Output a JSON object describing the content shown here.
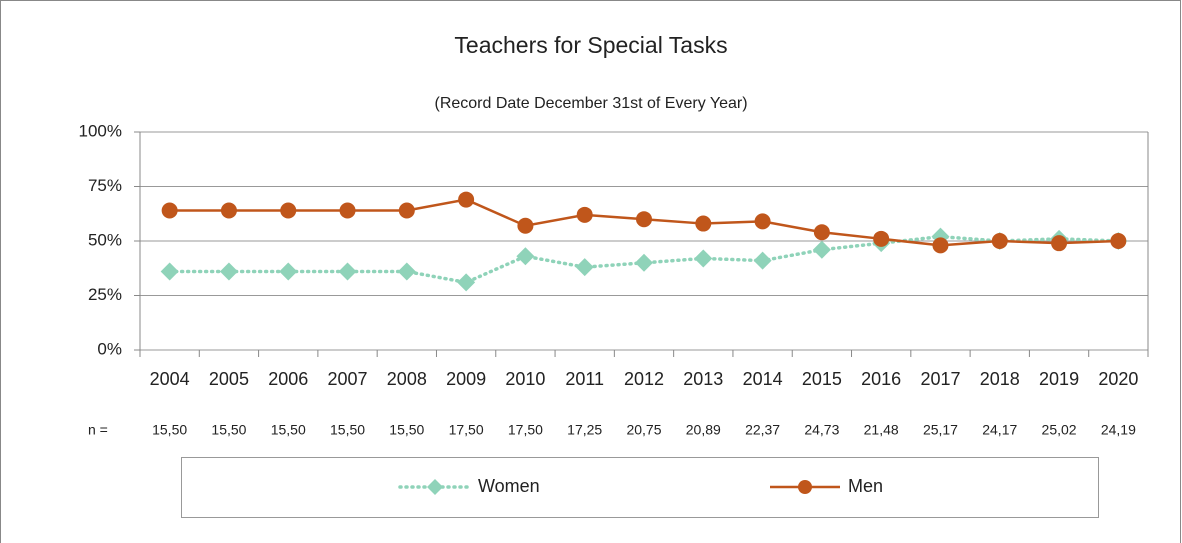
{
  "chart_data": {
    "type": "line",
    "title": "Teachers for Special Tasks",
    "subtitle": "(Record Date December 31st of Every Year)",
    "categories": [
      "2004",
      "2005",
      "2006",
      "2007",
      "2008",
      "2009",
      "2010",
      "2011",
      "2012",
      "2013",
      "2014",
      "2015",
      "2016",
      "2017",
      "2018",
      "2019",
      "2020"
    ],
    "series": [
      {
        "name": "Women",
        "color": "#8fd3b9",
        "values": [
          36,
          36,
          36,
          36,
          36,
          31,
          43,
          38,
          40,
          42,
          41,
          46,
          49,
          52,
          50,
          51,
          50
        ]
      },
      {
        "name": "Men",
        "color": "#c0561b",
        "values": [
          64,
          64,
          64,
          64,
          64,
          69,
          57,
          62,
          60,
          58,
          59,
          54,
          51,
          48,
          50,
          49,
          50
        ]
      }
    ],
    "n_label": "n =",
    "n_values": [
      "15,50",
      "15,50",
      "15,50",
      "15,50",
      "15,50",
      "17,50",
      "17,50",
      "17,25",
      "20,75",
      "20,89",
      "22,37",
      "24,73",
      "21,48",
      "25,17",
      "24,17",
      "25,02",
      "24,19"
    ],
    "ylim": [
      0,
      100
    ],
    "yticks": [
      {
        "value": 0,
        "label": "0%"
      },
      {
        "value": 25,
        "label": "25%"
      },
      {
        "value": 50,
        "label": "50%"
      },
      {
        "value": 75,
        "label": "75%"
      },
      {
        "value": 100,
        "label": "100%"
      }
    ],
    "grid": true,
    "legend": "bottom"
  }
}
